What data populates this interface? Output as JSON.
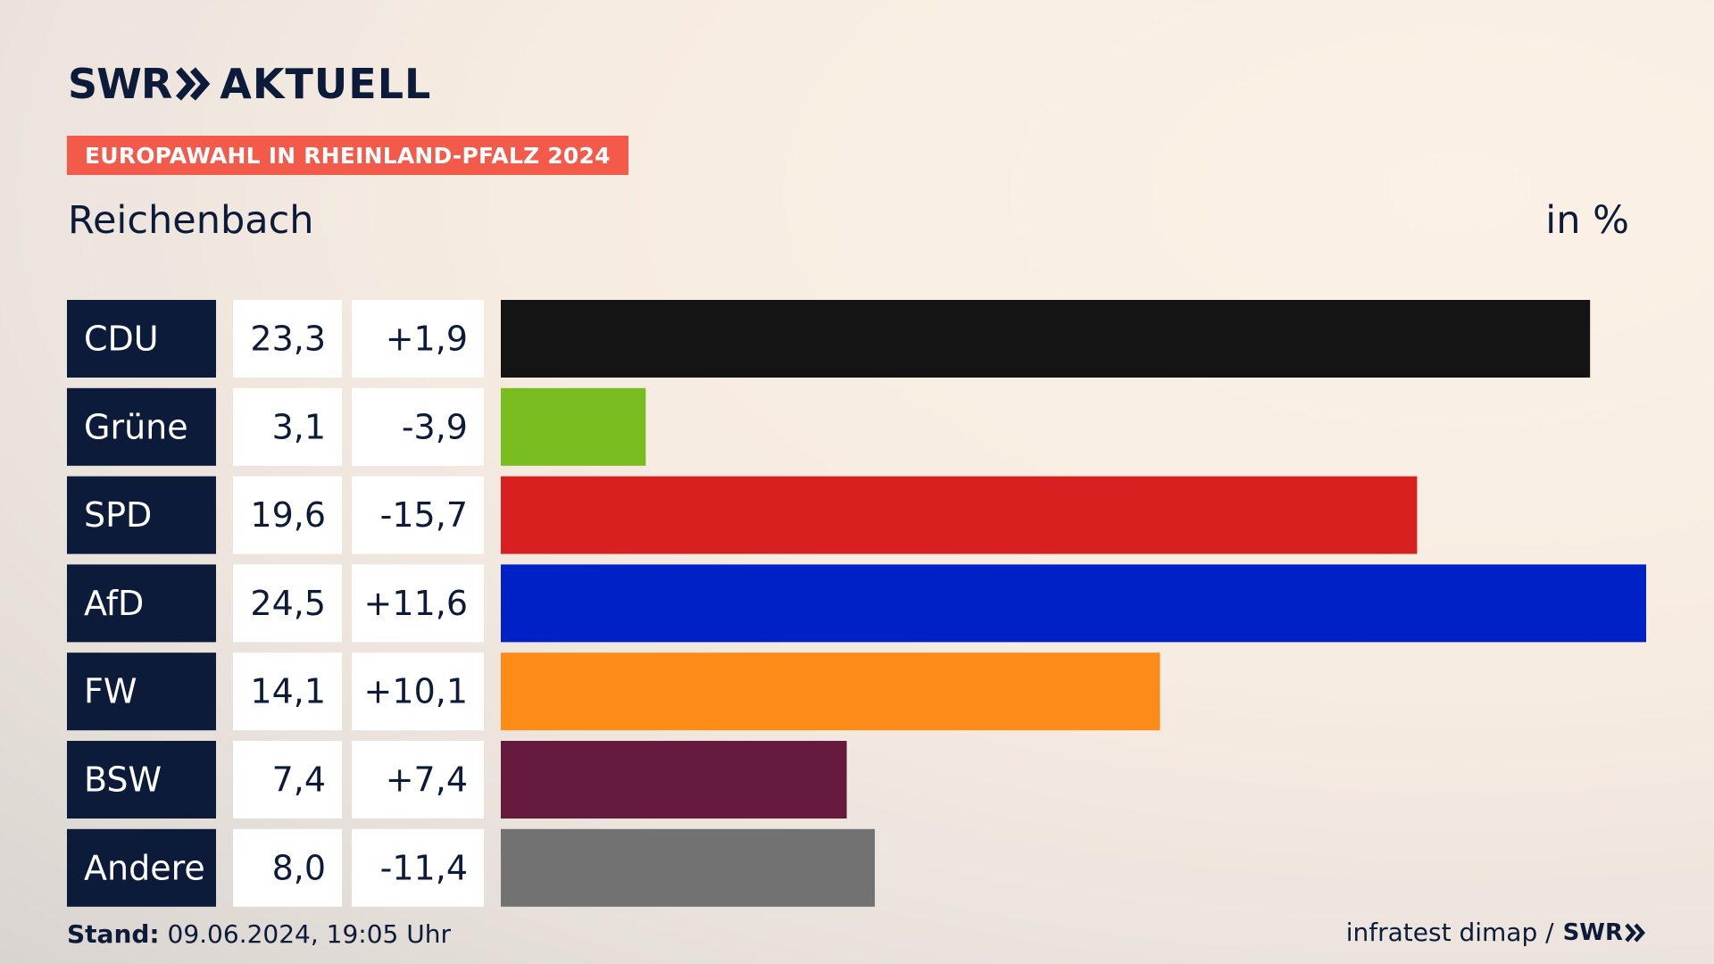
{
  "header": {
    "logo_left": "SWR",
    "logo_right": "AKTUELL",
    "badge": "EUROPAWAHL IN RHEINLAND-PFALZ 2024",
    "place": "Reichenbach",
    "unit": "in %"
  },
  "footer": {
    "stand_label": "Stand:",
    "stand_value": "09.06.2024, 19:05 Uhr",
    "source": "infratest dimap /",
    "source_logo": "SWR"
  },
  "colors": {
    "navy": "#0d1b3a",
    "badge": "#f45a4a"
  },
  "chart_data": {
    "type": "bar",
    "orientation": "horizontal",
    "categories": [
      "CDU",
      "Grüne",
      "SPD",
      "AfD",
      "FW",
      "BSW",
      "Andere"
    ],
    "values": [
      23.3,
      3.1,
      19.6,
      24.5,
      14.1,
      7.4,
      8.0
    ],
    "value_labels": [
      "23,3",
      "3,1",
      "19,6",
      "24,5",
      "14,1",
      "7,4",
      "8,0"
    ],
    "change_labels": [
      "+1,9",
      "-3,9",
      "-15,7",
      "+11,6",
      "+10,1",
      "+7,4",
      "-11,4"
    ],
    "bar_colors": [
      "#141414",
      "#78bc1f",
      "#d7201f",
      "#0021c6",
      "#fd8b18",
      "#661a3e",
      "#727272"
    ],
    "xlim": [
      0,
      24.5
    ]
  }
}
